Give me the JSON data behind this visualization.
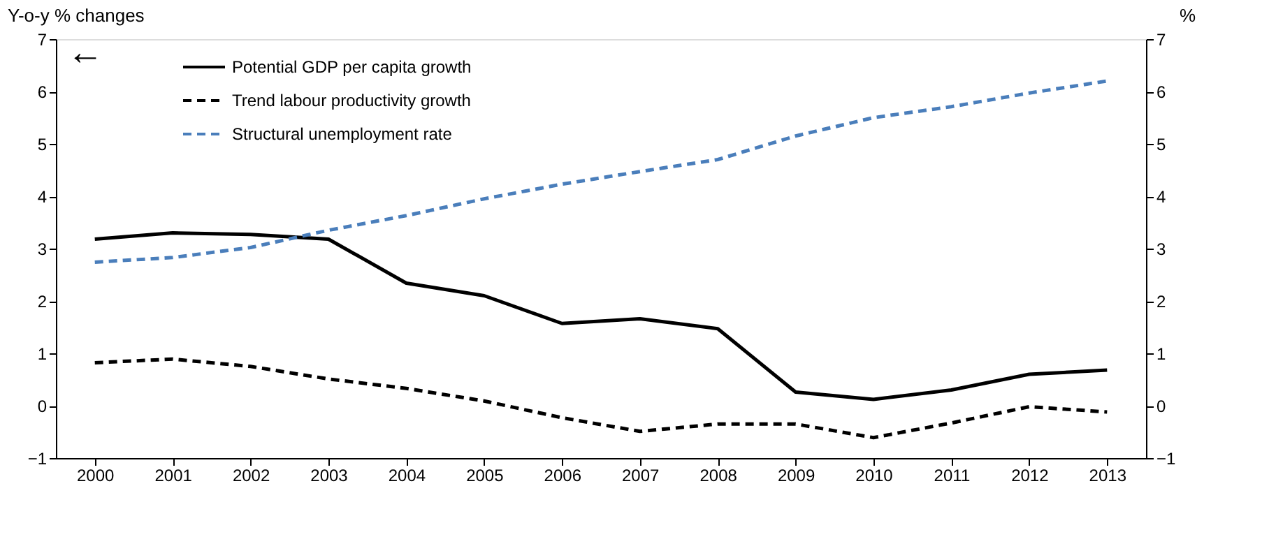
{
  "chart_data": {
    "type": "line",
    "ylabel": "Y-o-y % changes",
    "y2label": "%",
    "categories": [
      "2000",
      "2001",
      "2002",
      "2003",
      "2004",
      "2005",
      "2006",
      "2007",
      "2008",
      "2009",
      "2010",
      "2011",
      "2012",
      "2013"
    ],
    "series": [
      {
        "name": "Potential GDP per capita growth",
        "color": "#000000",
        "line_style": "solid",
        "values": [
          3.18,
          3.3,
          3.27,
          3.18,
          2.34,
          2.1,
          1.57,
          1.66,
          1.47,
          0.26,
          0.12,
          0.3,
          0.6,
          0.68
        ]
      },
      {
        "name": "Trend labour productivity growth",
        "color": "#000000",
        "line_style": "dashed",
        "values": [
          0.82,
          0.89,
          0.75,
          0.51,
          0.33,
          0.09,
          -0.23,
          -0.49,
          -0.35,
          -0.35,
          -0.61,
          -0.33,
          -0.02,
          -0.12
        ]
      },
      {
        "name": "Structural unemployment rate",
        "color": "#4a7ebb",
        "line_style": "dashed",
        "axis": "y2",
        "values": [
          2.74,
          2.83,
          3.02,
          3.35,
          3.63,
          3.95,
          4.23,
          4.47,
          4.7,
          5.15,
          5.5,
          5.71,
          5.97,
          6.2
        ]
      }
    ],
    "ylim": [
      -1,
      7
    ],
    "yticks": [
      -1,
      0,
      1,
      2,
      3,
      4,
      5,
      6,
      7
    ],
    "y2lim": [
      -1,
      7
    ],
    "y2ticks": [
      -1,
      0,
      1,
      2,
      3,
      4,
      5,
      6,
      7
    ],
    "grid": false,
    "legend": "top left",
    "marker": "none",
    "annotations": [
      "←"
    ]
  }
}
